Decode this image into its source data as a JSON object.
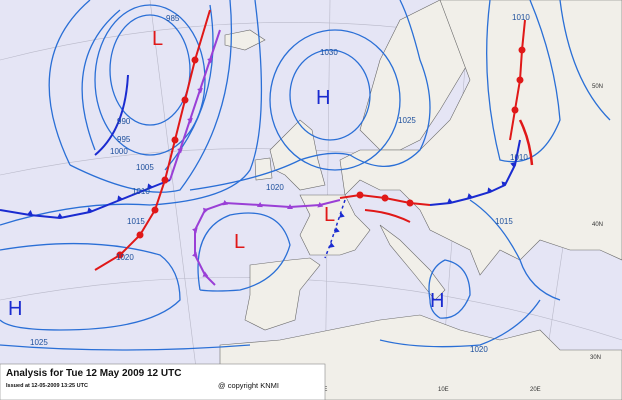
{
  "map": {
    "pressure_centers": [
      "L",
      "H",
      "L",
      "L",
      "H",
      "H"
    ],
    "isobar_labels": [
      "985",
      "990",
      "995",
      "1000",
      "1005",
      "1010",
      "1015",
      "1020",
      "1030",
      "1025",
      "1010",
      "1010",
      "1015",
      "1025",
      "1020",
      "1020"
    ],
    "graticule_labels": [
      "50N",
      "40N",
      "30N",
      "0E",
      "10E",
      "20E"
    ]
  },
  "footer": {
    "title": "Analysis for Tue 12 May 2009 12 UTC",
    "issued": "Issued at 12-05-2009 13:25 UTC",
    "copyright": "@ copyright KNMI"
  }
}
